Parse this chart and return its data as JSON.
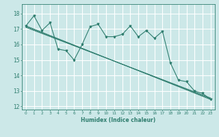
{
  "background_color": "#cce8e8",
  "grid_color": "#ffffff",
  "line_color": "#2e7d6e",
  "xlabel": "Humidex (Indice chaleur)",
  "xlim": [
    -0.5,
    23.5
  ],
  "ylim": [
    11.8,
    18.6
  ],
  "yticks": [
    12,
    13,
    14,
    15,
    16,
    17,
    18
  ],
  "xticks": [
    0,
    1,
    2,
    3,
    4,
    5,
    6,
    7,
    8,
    9,
    10,
    11,
    12,
    13,
    14,
    15,
    16,
    17,
    18,
    19,
    20,
    21,
    22,
    23
  ],
  "series_main": {
    "x": [
      0,
      1,
      2,
      3,
      4,
      5,
      6,
      7,
      8,
      9,
      10,
      11,
      12,
      13,
      14,
      15,
      16,
      17,
      18,
      19,
      20,
      21,
      22,
      23
    ],
    "y": [
      17.2,
      17.85,
      16.9,
      17.4,
      15.7,
      15.6,
      15.0,
      16.0,
      17.15,
      17.3,
      16.5,
      16.5,
      16.65,
      17.2,
      16.5,
      16.9,
      16.4,
      16.85,
      14.8,
      13.7,
      13.6,
      13.0,
      12.85,
      12.45
    ]
  },
  "trend_lines": [
    {
      "x": [
        0,
        23
      ],
      "y": [
        17.2,
        12.45
      ]
    },
    {
      "x": [
        0,
        23
      ],
      "y": [
        17.15,
        12.5
      ]
    },
    {
      "x": [
        0,
        23
      ],
      "y": [
        17.1,
        12.55
      ]
    }
  ]
}
